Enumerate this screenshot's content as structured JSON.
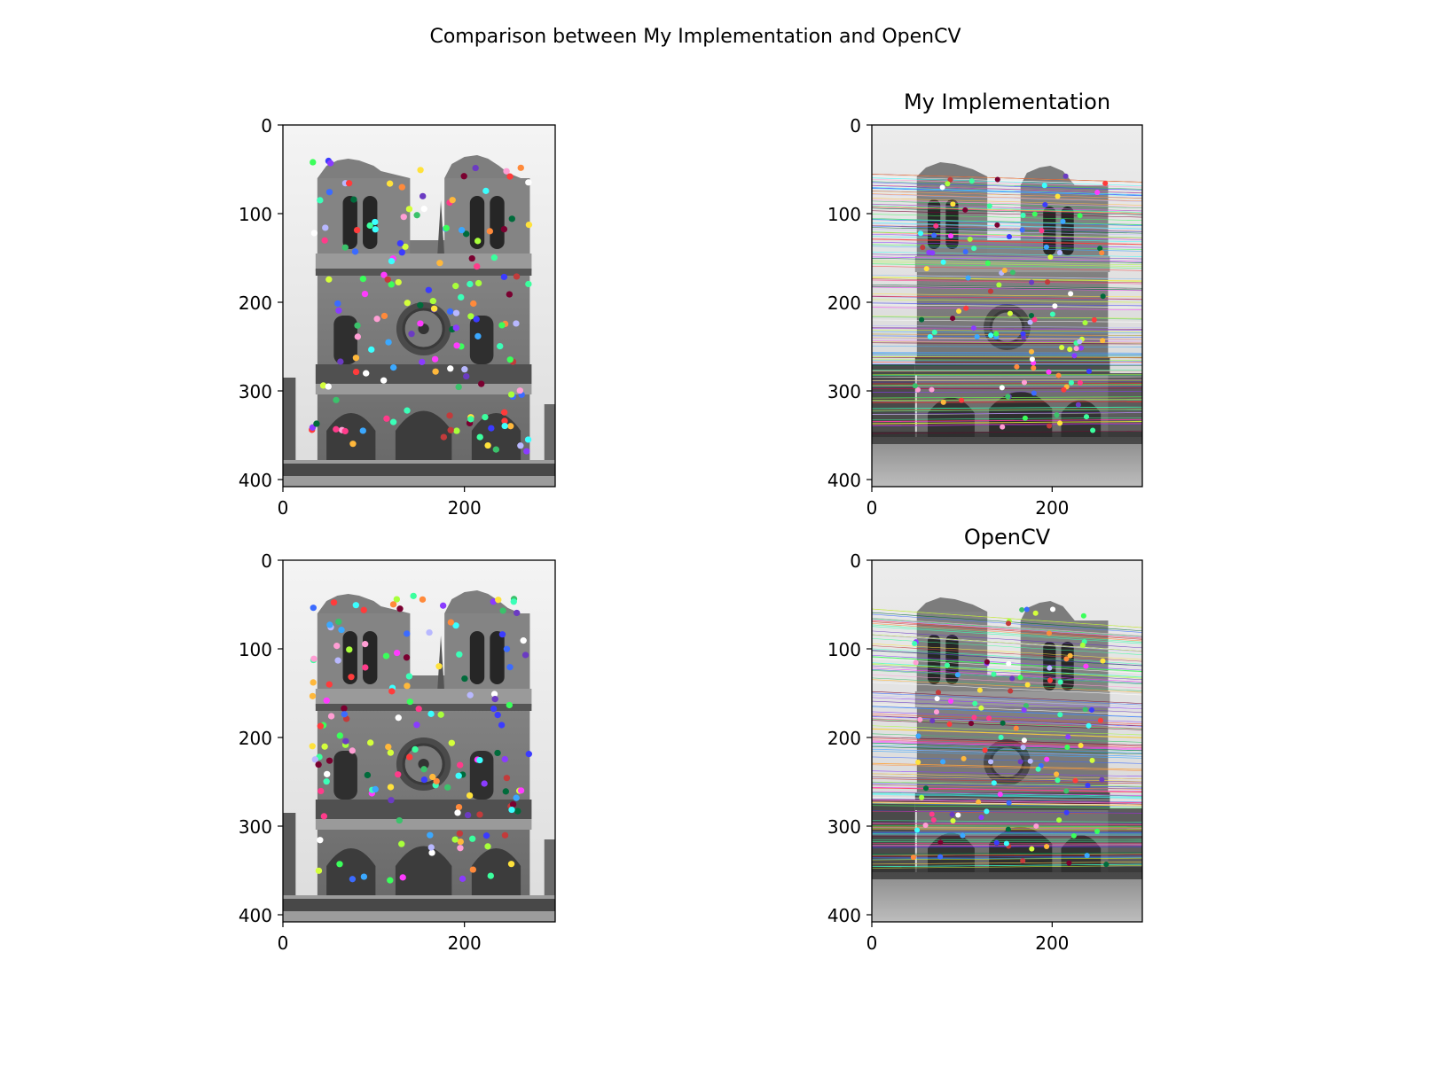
{
  "figure": {
    "suptitle": "Comparison between My Implementation and OpenCV"
  },
  "chart_data": [
    {
      "type": "image",
      "title": "",
      "xticks": [
        0,
        200
      ],
      "yticks": [
        0,
        100,
        200,
        300,
        400
      ],
      "xlim": [
        0,
        300
      ],
      "ylim": [
        408,
        0
      ],
      "image": "grayscale photo of Notre-Dame cathedral facade (view 1)",
      "overlay": "colored keypoint dots",
      "keypoint_count_approx": 150
    },
    {
      "type": "image",
      "title": "My Implementation",
      "xticks": [
        0,
        200
      ],
      "yticks": [
        0,
        100,
        200,
        300,
        400
      ],
      "xlim": [
        0,
        300
      ],
      "ylim": [
        408,
        0
      ],
      "image": "grayscale photo of Notre-Dame cathedral facade (view 2)",
      "overlay": "colored keypoint dots with epipolar lines",
      "epiline_count_approx": 150
    },
    {
      "type": "image",
      "title": "",
      "xticks": [
        0,
        200
      ],
      "yticks": [
        0,
        100,
        200,
        300,
        400
      ],
      "xlim": [
        0,
        300
      ],
      "ylim": [
        408,
        0
      ],
      "image": "grayscale photo of Notre-Dame cathedral facade (view 1)",
      "overlay": "colored keypoint dots",
      "keypoint_count_approx": 150
    },
    {
      "type": "image",
      "title": "OpenCV",
      "xticks": [
        0,
        200
      ],
      "yticks": [
        0,
        100,
        200,
        300,
        400
      ],
      "xlim": [
        0,
        300
      ],
      "ylim": [
        408,
        0
      ],
      "image": "grayscale photo of Notre-Dame cathedral facade (view 2)",
      "overlay": "colored keypoint dots with epipolar lines",
      "epiline_count_approx": 150
    }
  ]
}
